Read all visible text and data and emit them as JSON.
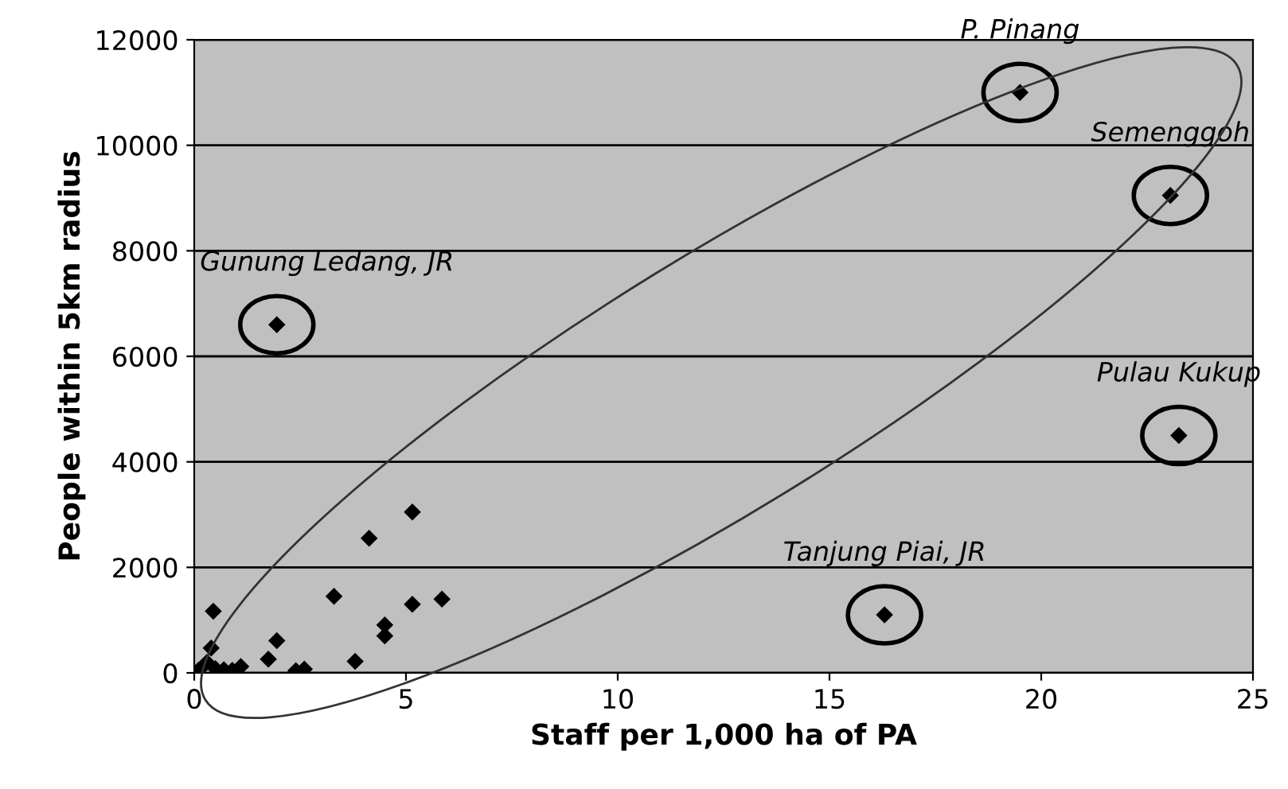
{
  "chart_data": {
    "type": "scatter",
    "xlabel": "Staff per 1,000 ha of PA",
    "ylabel": "People within 5km radius",
    "x": [
      0.1,
      0.3,
      0.4,
      0.45,
      0.5,
      0.7,
      0.9,
      1.1,
      1.75,
      1.95,
      2.4,
      2.6,
      3.3,
      3.8,
      4.13,
      4.5,
      4.5,
      5.15,
      5.15,
      5.85,
      1.95,
      19.5,
      23.05,
      23.25,
      16.3
    ],
    "values": [
      50,
      200,
      470,
      1170,
      80,
      60,
      50,
      120,
      260,
      610,
      40,
      70,
      1450,
      220,
      2550,
      910,
      700,
      3050,
      1300,
      1400,
      6600,
      11000,
      9050,
      4500,
      1100
    ],
    "color": "#000000",
    "marker": "diamond",
    "grid": "y",
    "xlim": [
      0,
      25
    ],
    "xticks": [
      0,
      5,
      10,
      15,
      20,
      25
    ],
    "ylim": [
      0,
      12000
    ],
    "yticks": [
      0,
      2000,
      4000,
      6000,
      8000,
      10000,
      12000
    ],
    "annotations": [
      {
        "text": "Gunung Ledang, JR",
        "x": 1.95,
        "y": 6600
      },
      {
        "text": "P. Pinang",
        "x": 19.5,
        "y": 11000
      },
      {
        "text": "Semenggoh",
        "x": 23.05,
        "y": 9050
      },
      {
        "text": "Pulau Kukup",
        "x": 23.25,
        "y": 4500
      },
      {
        "text": "Tanjung Piai, JR",
        "x": 16.3,
        "y": 1100
      }
    ]
  }
}
